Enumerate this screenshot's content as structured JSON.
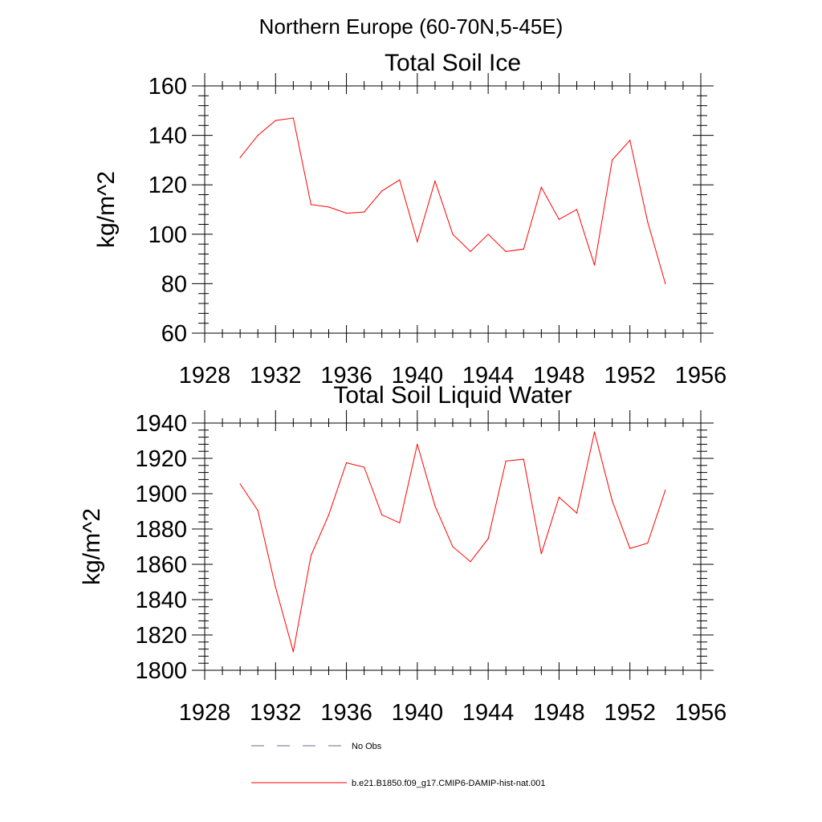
{
  "figure": {
    "title": "Northern Europe (60-70N,5-45E)"
  },
  "chart_data": [
    {
      "type": "line",
      "title": "Total Soil Ice",
      "xlabel": "",
      "ylabel": "kg/m^2",
      "xlim": [
        1928,
        1956
      ],
      "ylim": [
        60,
        160
      ],
      "xticks": [
        1928,
        1932,
        1936,
        1940,
        1944,
        1948,
        1952,
        1956
      ],
      "yticks": [
        60,
        80,
        100,
        120,
        140,
        160
      ],
      "grid": false,
      "x": [
        1930,
        1931,
        1932,
        1933,
        1934,
        1935,
        1936,
        1937,
        1938,
        1939,
        1940,
        1941,
        1942,
        1943,
        1944,
        1945,
        1946,
        1947,
        1948,
        1949,
        1950,
        1951,
        1952,
        1953,
        1954
      ],
      "series": [
        {
          "name": "b.e21.B1850.f09_g17.CMIP6-DAMIP-hist-nat.001",
          "color": "#ff0000",
          "values": [
            131,
            140,
            146,
            147,
            112,
            111,
            108.5,
            109,
            117.5,
            122,
            97,
            121.5,
            100,
            93,
            100,
            93,
            94,
            119,
            106,
            110,
            87.5,
            130,
            138,
            105,
            80
          ]
        }
      ]
    },
    {
      "type": "line",
      "title": "Total Soil Liquid Water",
      "xlabel": "",
      "ylabel": "kg/m^2",
      "xlim": [
        1928,
        1956
      ],
      "ylim": [
        1800,
        1940
      ],
      "xticks": [
        1928,
        1932,
        1936,
        1940,
        1944,
        1948,
        1952,
        1956
      ],
      "yticks": [
        1800,
        1820,
        1840,
        1860,
        1880,
        1900,
        1920,
        1940
      ],
      "grid": false,
      "x": [
        1930,
        1931,
        1932,
        1933,
        1934,
        1935,
        1936,
        1937,
        1938,
        1939,
        1940,
        1941,
        1942,
        1943,
        1944,
        1945,
        1946,
        1947,
        1948,
        1949,
        1950,
        1951,
        1952,
        1953,
        1954
      ],
      "series": [
        {
          "name": "b.e21.B1850.f09_g17.CMIP6-DAMIP-hist-nat.001",
          "color": "#ff0000",
          "values": [
            1905.5,
            1890.5,
            1847,
            1810.5,
            1865,
            1888,
            1917.5,
            1915,
            1888,
            1883.5,
            1928,
            1893,
            1870,
            1861.5,
            1874.5,
            1918.5,
            1919.5,
            1866,
            1898,
            1889,
            1935,
            1896,
            1869,
            1872,
            1902
          ]
        }
      ]
    }
  ],
  "legend": {
    "placement": "bottom",
    "items": [
      {
        "label": "No Obs",
        "style": "dashed",
        "color": "#6b6b9a"
      },
      {
        "label": "b.e21.B1850.f09_g17.CMIP6-DAMIP-hist-nat.001",
        "style": "solid",
        "color": "#ff0000"
      }
    ]
  }
}
